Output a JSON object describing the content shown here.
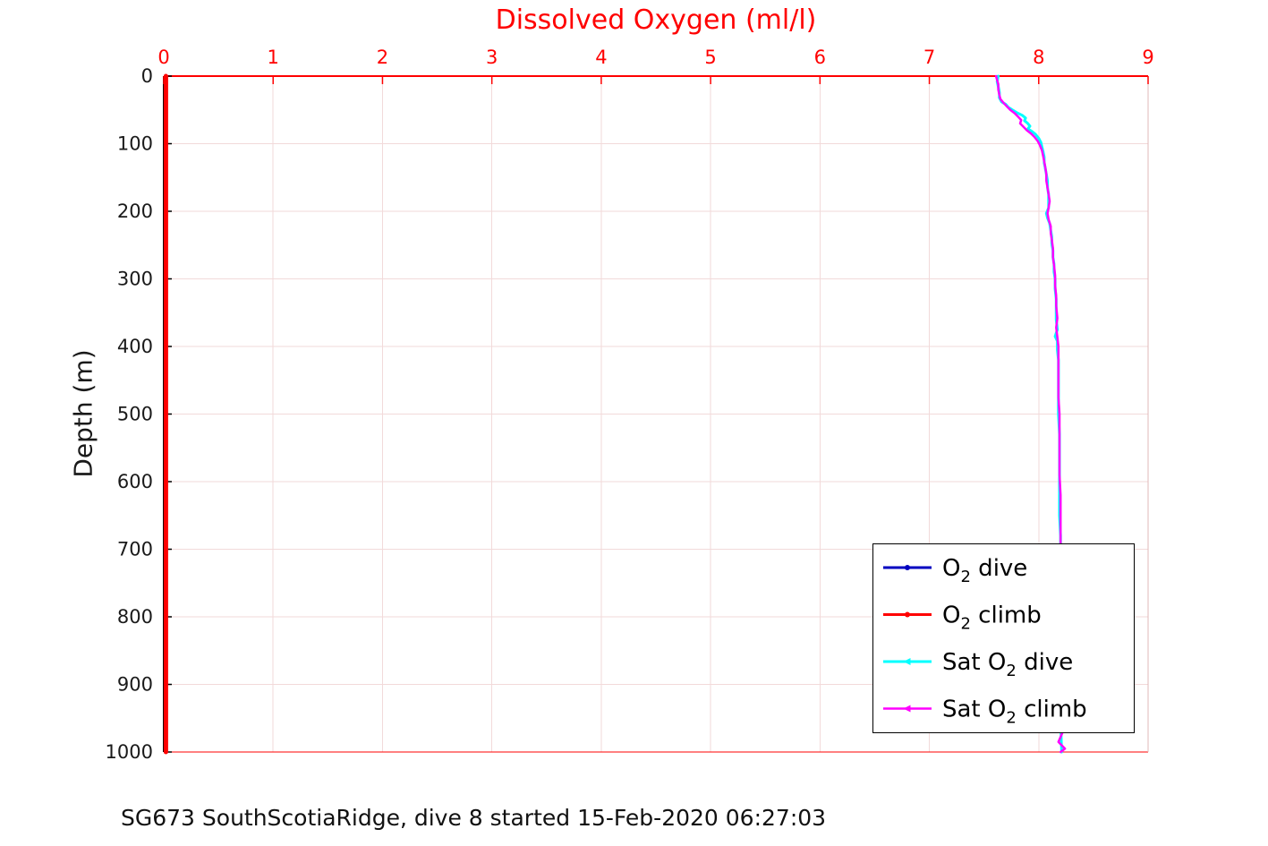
{
  "figure": {
    "caption": "SG673 SouthScotiaRidge, dive 8 started 15-Feb-2020 06:27:03"
  },
  "chart_data": {
    "type": "line",
    "title": "Dissolved Oxygen (ml/l)",
    "xlabel": "Dissolved Oxygen (ml/l)",
    "ylabel": "Depth (m)",
    "x_axis_location": "top",
    "x_axis_color": "#ff0000",
    "y_axis_color": "#000000",
    "grid": true,
    "grid_color": "#f2dada",
    "xlim": [
      0,
      9
    ],
    "ylim": [
      0,
      1000
    ],
    "y_direction": "reverse",
    "x_ticks": [
      "0",
      "1",
      "2",
      "3",
      "4",
      "5",
      "6",
      "7",
      "8",
      "9"
    ],
    "y_ticks": [
      "0",
      "100",
      "200",
      "300",
      "400",
      "500",
      "600",
      "700",
      "800",
      "900",
      "1000"
    ],
    "legend": {
      "location": "lower-right",
      "border_color": "#000000",
      "background": "#ffffff",
      "entries": [
        "O2 dive",
        "O2 climb",
        "Sat O2 dive",
        "Sat O2 climb"
      ]
    },
    "series": [
      {
        "name": "O2 dive",
        "color": "#0000c0",
        "marker": "point",
        "line_width": 3,
        "points": [
          [
            0.02,
            0
          ],
          [
            0.02,
            1000
          ]
        ]
      },
      {
        "name": "O2 climb",
        "color": "#ff0000",
        "marker": "point",
        "line_width": 5,
        "points": [
          [
            0.02,
            0
          ],
          [
            0.02,
            1000
          ]
        ]
      },
      {
        "name": "Sat O2 dive",
        "color": "#00ffff",
        "marker": "triangle-left",
        "line_width": 3,
        "points": [
          [
            7.63,
            0
          ],
          [
            7.62,
            8
          ],
          [
            7.63,
            16
          ],
          [
            7.64,
            24
          ],
          [
            7.64,
            32
          ],
          [
            7.66,
            38
          ],
          [
            7.7,
            42
          ],
          [
            7.72,
            46
          ],
          [
            7.76,
            50
          ],
          [
            7.8,
            54
          ],
          [
            7.85,
            58
          ],
          [
            7.88,
            62
          ],
          [
            7.87,
            66
          ],
          [
            7.9,
            70
          ],
          [
            7.92,
            74
          ],
          [
            7.9,
            78
          ],
          [
            7.94,
            82
          ],
          [
            7.97,
            86
          ],
          [
            8.0,
            92
          ],
          [
            8.02,
            98
          ],
          [
            8.03,
            105
          ],
          [
            8.04,
            112
          ],
          [
            8.05,
            120
          ],
          [
            8.05,
            128
          ],
          [
            8.06,
            136
          ],
          [
            8.07,
            145
          ],
          [
            8.08,
            155
          ],
          [
            8.08,
            165
          ],
          [
            8.09,
            175
          ],
          [
            8.09,
            185
          ],
          [
            8.09,
            195
          ],
          [
            8.07,
            203
          ],
          [
            8.08,
            210
          ],
          [
            8.1,
            218
          ],
          [
            8.11,
            228
          ],
          [
            8.12,
            238
          ],
          [
            8.12,
            248
          ],
          [
            8.13,
            258
          ],
          [
            8.13,
            268
          ],
          [
            8.14,
            278
          ],
          [
            8.14,
            290
          ],
          [
            8.15,
            300
          ],
          [
            8.15,
            315
          ],
          [
            8.16,
            330
          ],
          [
            8.16,
            345
          ],
          [
            8.16,
            360
          ],
          [
            8.17,
            375
          ],
          [
            8.15,
            385
          ],
          [
            8.17,
            392
          ],
          [
            8.17,
            405
          ],
          [
            8.18,
            420
          ],
          [
            8.18,
            440
          ],
          [
            8.18,
            460
          ],
          [
            8.18,
            480
          ],
          [
            8.18,
            500
          ],
          [
            8.19,
            530
          ],
          [
            8.19,
            560
          ],
          [
            8.19,
            590
          ],
          [
            8.19,
            620
          ],
          [
            8.19,
            650
          ],
          [
            8.2,
            680
          ],
          [
            8.2,
            720
          ],
          [
            8.2,
            760
          ],
          [
            8.2,
            800
          ],
          [
            8.2,
            850
          ],
          [
            8.2,
            900
          ],
          [
            8.2,
            950
          ],
          [
            8.21,
            1000
          ]
        ]
      },
      {
        "name": "Sat O2 climb",
        "color": "#ff00ff",
        "marker": "triangle-left",
        "line_width": 2.5,
        "points": [
          [
            7.61,
            0
          ],
          [
            7.62,
            6
          ],
          [
            7.63,
            12
          ],
          [
            7.63,
            20
          ],
          [
            7.64,
            28
          ],
          [
            7.65,
            34
          ],
          [
            7.68,
            40
          ],
          [
            7.71,
            45
          ],
          [
            7.74,
            50
          ],
          [
            7.78,
            55
          ],
          [
            7.81,
            60
          ],
          [
            7.84,
            65
          ],
          [
            7.83,
            70
          ],
          [
            7.86,
            75
          ],
          [
            7.89,
            80
          ],
          [
            7.93,
            85
          ],
          [
            7.96,
            90
          ],
          [
            7.99,
            96
          ],
          [
            8.01,
            102
          ],
          [
            8.03,
            110
          ],
          [
            8.04,
            118
          ],
          [
            8.05,
            126
          ],
          [
            8.06,
            135
          ],
          [
            8.07,
            145
          ],
          [
            8.07,
            155
          ],
          [
            8.08,
            165
          ],
          [
            8.09,
            175
          ],
          [
            8.1,
            185
          ],
          [
            8.09,
            195
          ],
          [
            8.08,
            203
          ],
          [
            8.09,
            212
          ],
          [
            8.11,
            222
          ],
          [
            8.11,
            232
          ],
          [
            8.12,
            242
          ],
          [
            8.13,
            255
          ],
          [
            8.13,
            268
          ],
          [
            8.14,
            280
          ],
          [
            8.15,
            295
          ],
          [
            8.15,
            310
          ],
          [
            8.16,
            325
          ],
          [
            8.16,
            340
          ],
          [
            8.17,
            358
          ],
          [
            8.16,
            372
          ],
          [
            8.17,
            386
          ],
          [
            8.18,
            400
          ],
          [
            8.18,
            425
          ],
          [
            8.18,
            450
          ],
          [
            8.18,
            475
          ],
          [
            8.19,
            500
          ],
          [
            8.19,
            530
          ],
          [
            8.19,
            560
          ],
          [
            8.19,
            590
          ],
          [
            8.2,
            620
          ],
          [
            8.2,
            650
          ],
          [
            8.2,
            680
          ],
          [
            8.2,
            710
          ],
          [
            8.2,
            740
          ],
          [
            8.21,
            770
          ],
          [
            8.2,
            800
          ],
          [
            8.21,
            830
          ],
          [
            8.21,
            860
          ],
          [
            8.21,
            890
          ],
          [
            8.21,
            920
          ],
          [
            8.2,
            950
          ],
          [
            8.22,
            970
          ],
          [
            8.18,
            985
          ],
          [
            8.24,
            995
          ],
          [
            8.2,
            1000
          ]
        ]
      }
    ]
  }
}
